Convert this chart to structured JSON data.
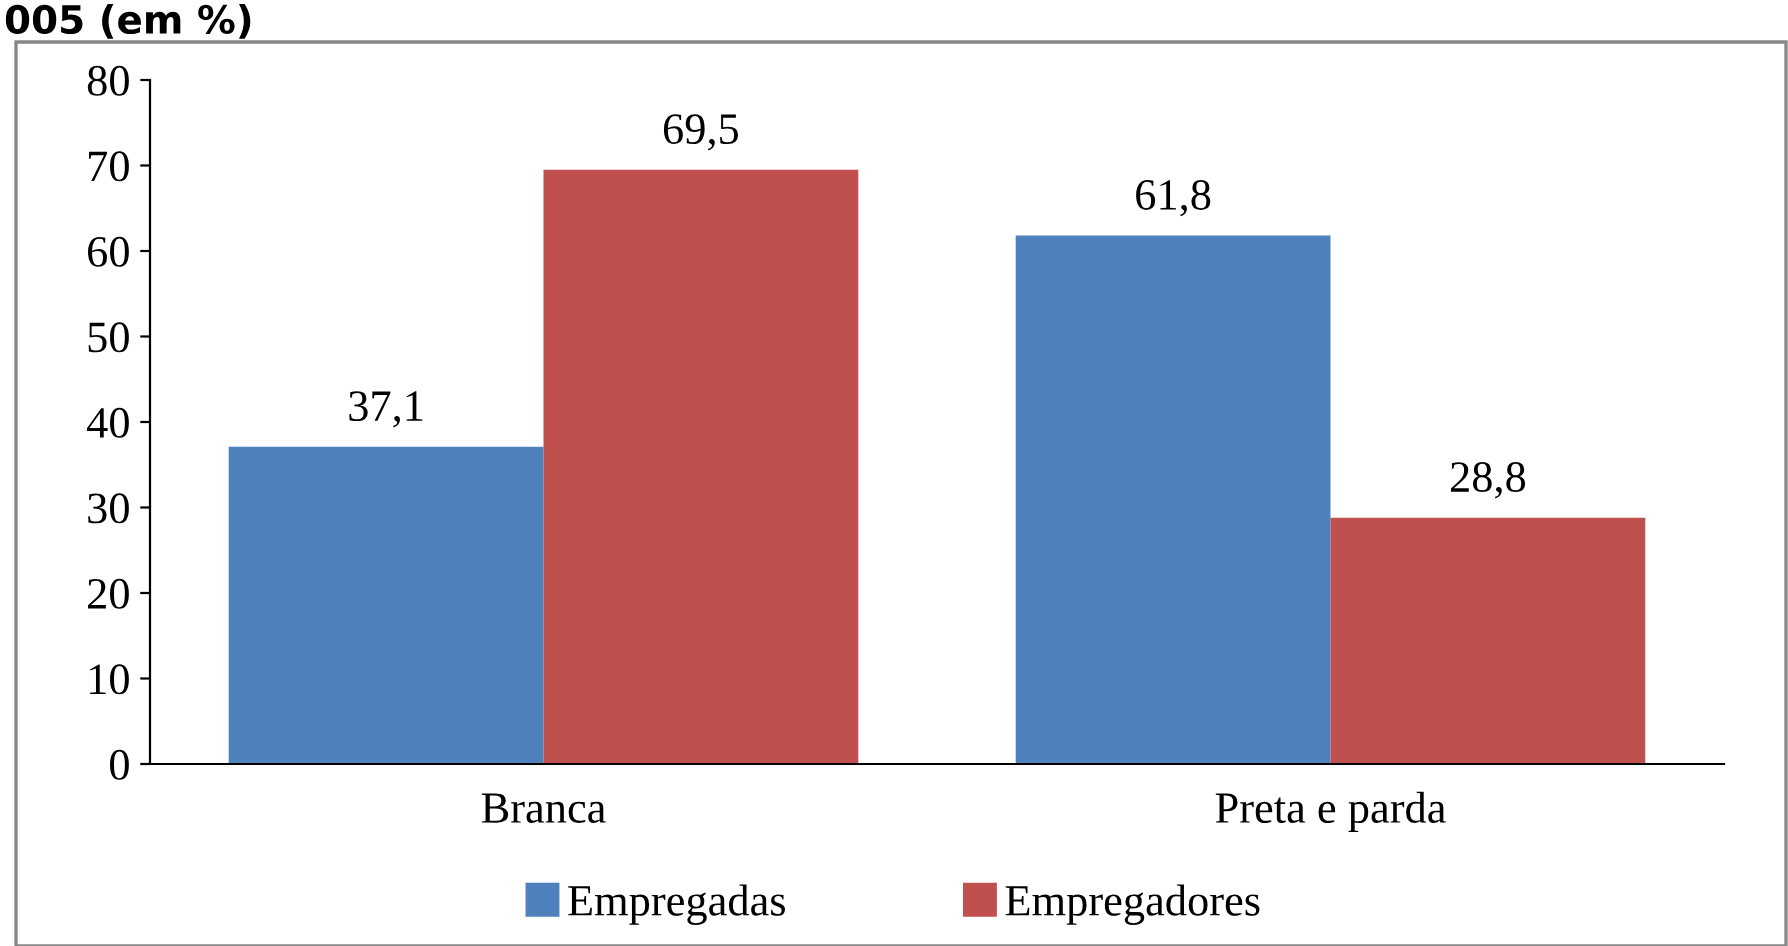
{
  "chart_data": {
    "type": "bar",
    "title": "005 (em %)",
    "categories": [
      "Branca",
      "Preta e parda"
    ],
    "series": [
      {
        "name": "Empregadas",
        "color": "#4f81bd",
        "values": [
          37.1,
          61.8
        ],
        "value_labels": [
          "37,1",
          "61,8"
        ]
      },
      {
        "name": "Empregadores",
        "color": "#c0504d",
        "values": [
          69.5,
          28.8
        ],
        "value_labels": [
          "69,5",
          "28,8"
        ]
      }
    ],
    "ylim": [
      0,
      80
    ],
    "yticks": [
      0,
      10,
      20,
      30,
      40,
      50,
      60,
      70,
      80
    ],
    "grid": false,
    "legend": "bottom"
  }
}
